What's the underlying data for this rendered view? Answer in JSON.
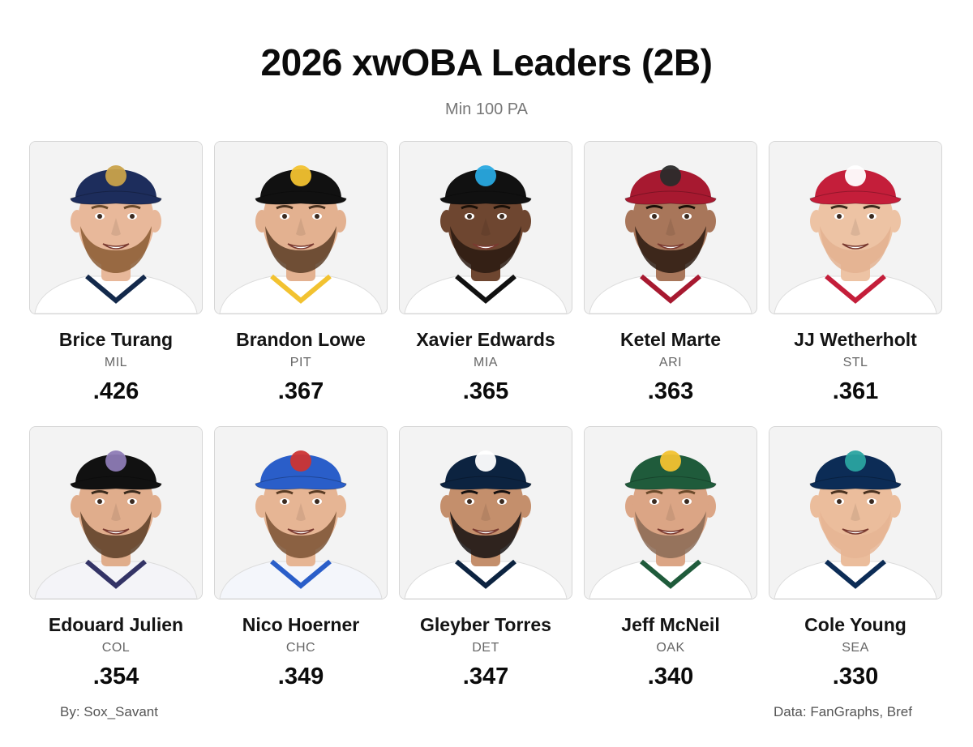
{
  "title": "2026 xwOBA Leaders (2B)",
  "subtitle": "Min 100 PA",
  "players": [
    {
      "name": "Brice Turang",
      "team": "MIL",
      "value": ".426",
      "cap_color": "#1d2d5c",
      "logo_color": "#c9a24a",
      "jersey_color": "#ffffff",
      "trim_color": "#13294b",
      "beard": "#8a5a32",
      "hair": "#6b4a2b",
      "skin": "#e8b89a"
    },
    {
      "name": "Brandon Lowe",
      "team": "PIT",
      "value": ".367",
      "cap_color": "#111111",
      "logo_color": "#f2c230",
      "jersey_color": "#ffffff",
      "trim_color": "#f2c230",
      "beard": "#5b3d26",
      "hair": "#4a3220",
      "skin": "#e3b190"
    },
    {
      "name": "Xavier Edwards",
      "team": "MIA",
      "value": ".365",
      "cap_color": "#111111",
      "logo_color": "#29a9e0",
      "jersey_color": "#ffffff",
      "trim_color": "#111111",
      "beard": "#2a1a10",
      "hair": "#1a1008",
      "skin": "#6e4630"
    },
    {
      "name": "Ketel Marte",
      "team": "ARI",
      "value": ".363",
      "cap_color": "#a71930",
      "logo_color": "#2b2b2b",
      "jersey_color": "#ffffff",
      "trim_color": "#a71930",
      "beard": "#2a1a10",
      "hair": "#1a1008",
      "skin": "#a8765a"
    },
    {
      "name": "JJ Wetherholt",
      "team": "STL",
      "value": ".361",
      "cap_color": "#c41e3a",
      "logo_color": "#ffffff",
      "jersey_color": "#ffffff",
      "trim_color": "#c41e3a",
      "beard": "#e3b190",
      "hair": "#3a2a1c",
      "skin": "#edc3a4"
    },
    {
      "name": "Edouard Julien",
      "team": "COL",
      "value": ".354",
      "cap_color": "#111111",
      "logo_color": "#8d7bb5",
      "jersey_color": "#f4f4f8",
      "trim_color": "#333366",
      "beard": "#5b3d26",
      "hair": "#3a2a1c",
      "skin": "#e0ad8c"
    },
    {
      "name": "Nico Hoerner",
      "team": "CHC",
      "value": ".349",
      "cap_color": "#2a5ec9",
      "logo_color": "#cc3433",
      "jersey_color": "#f4f6fb",
      "trim_color": "#2a5ec9",
      "beard": "#7a5234",
      "hair": "#5a3c24",
      "skin": "#e6b594"
    },
    {
      "name": "Gleyber Torres",
      "team": "DET",
      "value": ".347",
      "cap_color": "#0c2340",
      "logo_color": "#ffffff",
      "jersey_color": "#ffffff",
      "trim_color": "#0c2340",
      "beard": "#151010",
      "hair": "#151010",
      "skin": "#c48f6c"
    },
    {
      "name": "Jeff McNeil",
      "team": "OAK",
      "value": ".340",
      "cap_color": "#1f5b3b",
      "logo_color": "#f2c230",
      "jersey_color": "#ffffff",
      "trim_color": "#1f5b3b",
      "beard": "#8a6a55",
      "hair": "#6b4a2b",
      "skin": "#dba585"
    },
    {
      "name": "Cole Young",
      "team": "SEA",
      "value": ".330",
      "cap_color": "#0c2c56",
      "logo_color": "#2aa3a0",
      "jersey_color": "#ffffff",
      "trim_color": "#0c2c56",
      "beard": "#e6b594",
      "hair": "#4a3220",
      "skin": "#ebbd9c"
    }
  ],
  "footer": {
    "left": "By: Sox_Savant",
    "right": "Data: FanGraphs, Bref"
  }
}
